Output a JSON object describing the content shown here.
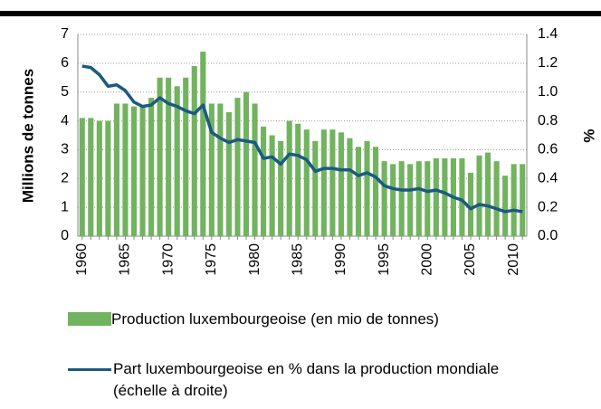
{
  "chart_data": {
    "type": "bar",
    "categories": [
      "1960",
      null,
      null,
      null,
      null,
      "1965",
      null,
      null,
      null,
      null,
      "1970",
      null,
      null,
      null,
      null,
      "1975",
      null,
      null,
      null,
      null,
      "1980",
      null,
      null,
      null,
      null,
      "1985",
      null,
      null,
      null,
      null,
      "1990",
      null,
      null,
      null,
      null,
      "1995",
      null,
      null,
      null,
      null,
      "2000",
      null,
      null,
      null,
      null,
      "2005",
      null,
      null,
      null,
      null,
      "2010",
      null
    ],
    "series": [
      {
        "name": "Production luxembourgeoise (en mio de tonnes)",
        "color": "#71b35f",
        "values": [
          4.1,
          4.1,
          4.0,
          4.0,
          4.6,
          4.6,
          4.5,
          4.5,
          4.8,
          5.5,
          5.5,
          5.2,
          5.5,
          5.9,
          6.4,
          4.6,
          4.6,
          4.3,
          4.8,
          5.0,
          4.6,
          3.8,
          3.5,
          3.3,
          4.0,
          3.9,
          3.7,
          3.3,
          3.7,
          3.7,
          3.6,
          3.4,
          3.1,
          3.3,
          3.1,
          2.6,
          2.5,
          2.6,
          2.5,
          2.6,
          2.6,
          2.7,
          2.7,
          2.7,
          2.7,
          2.2,
          2.8,
          2.9,
          2.6,
          2.1,
          2.5,
          2.5
        ]
      },
      {
        "name": "Part luxembourgeoise en % dans la production mondiale (échelle à droite)",
        "color": "#1b5a80",
        "type": "line",
        "axis": "y2",
        "values": [
          1.18,
          1.17,
          1.12,
          1.04,
          1.05,
          1.01,
          0.93,
          0.9,
          0.91,
          0.96,
          0.92,
          0.9,
          0.87,
          0.85,
          0.91,
          0.72,
          0.68,
          0.65,
          0.67,
          0.66,
          0.65,
          0.54,
          0.55,
          0.5,
          0.57,
          0.56,
          0.53,
          0.45,
          0.47,
          0.47,
          0.46,
          0.46,
          0.42,
          0.44,
          0.41,
          0.35,
          0.33,
          0.32,
          0.32,
          0.33,
          0.31,
          0.32,
          0.3,
          0.27,
          0.25,
          0.19,
          0.22,
          0.21,
          0.19,
          0.17,
          0.18,
          0.17
        ]
      }
    ],
    "y_label": "Millions de tonnes",
    "y2_label": "%",
    "ylim": [
      0,
      7
    ],
    "yticks": [
      0,
      1,
      2,
      3,
      4,
      5,
      6,
      7
    ],
    "y2lim": [
      0,
      1.4
    ],
    "y2ticks": [
      {
        "value": 0,
        "label": "0.0"
      },
      0.2,
      0.4,
      0.6,
      0.8,
      {
        "value": 1,
        "label": "1.0"
      },
      1.2,
      1.4
    ],
    "grid": true
  }
}
